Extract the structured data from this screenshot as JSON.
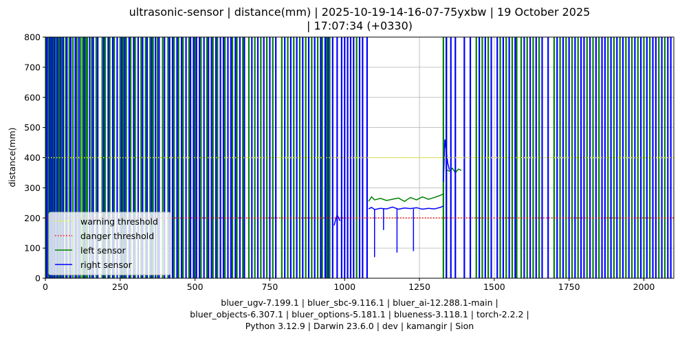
{
  "chart_data": {
    "type": "line",
    "title_lines": [
      "ultrasonic-sensor | distance(mm) | 2025-10-19-14-16-07-75yxbw | 19 October 2025",
      "| 17:07:34 (+0330)"
    ],
    "xlabel_lines": [
      "bluer_ugv-7.199.1 | bluer_sbc-9.116.1 | bluer_ai-12.288.1-main |",
      "bluer_objects-6.307.1 | bluer_options-5.181.1 | blueness-3.118.1 | torch-2.2.2 |",
      "Python 3.12.9 | Darwin 23.6.0 | dev | kamangir | Sion"
    ],
    "ylabel": "distance(mm)",
    "xlim": [
      0,
      2100
    ],
    "ylim": [
      0,
      800
    ],
    "x_ticks": [
      0,
      250,
      500,
      750,
      1000,
      1250,
      1500,
      1750,
      2000
    ],
    "y_ticks": [
      0,
      100,
      200,
      300,
      400,
      500,
      600,
      700,
      800
    ],
    "grid": true,
    "legend_position": "lower-left",
    "series": [
      {
        "name": "warning threshold",
        "color": "#ffff00",
        "style": "dotted",
        "x": [
          0,
          2100
        ],
        "y": [
          400,
          400
        ]
      },
      {
        "name": "danger threshold",
        "color": "#ff0000",
        "style": "dotted",
        "x": [
          0,
          2100
        ],
        "y": [
          200,
          200
        ]
      },
      {
        "name": "left sensor",
        "color": "#008000",
        "style": "solid",
        "spike_x": [
          3,
          10,
          18,
          25,
          35,
          45,
          55,
          68,
          80,
          92,
          105,
          118,
          125,
          135,
          140,
          155,
          170,
          190,
          200,
          215,
          230,
          250,
          260,
          270,
          285,
          300,
          320,
          335,
          350,
          360,
          375,
          392,
          410,
          430,
          445,
          460,
          480,
          500,
          520,
          540,
          560,
          575,
          600,
          625,
          640,
          660,
          680,
          700,
          720,
          740,
          760,
          790,
          810,
          830,
          850,
          870,
          890,
          910,
          925,
          940,
          950,
          1040,
          1330,
          1340,
          1440,
          1460,
          1480,
          1520,
          1540,
          1560,
          1575,
          1590,
          1610,
          1630,
          1650,
          1700,
          1720,
          1740,
          1760,
          1780,
          1810,
          1830,
          1850,
          1880,
          1900,
          1920,
          1940,
          1960,
          1980,
          2000,
          2020,
          2050,
          2070
        ],
        "plateau_x": [
          1080,
          1090,
          1100,
          1120,
          1140,
          1160,
          1180,
          1200,
          1220,
          1240,
          1260,
          1280,
          1300,
          1320,
          1330
        ],
        "plateau_y": [
          255,
          270,
          260,
          265,
          258,
          262,
          266,
          255,
          268,
          260,
          270,
          262,
          268,
          275,
          280
        ],
        "tail_x": [
          1340,
          1350,
          1360,
          1370,
          1380,
          1390
        ],
        "tail_y": [
          360,
          355,
          365,
          350,
          362,
          358
        ]
      },
      {
        "name": "right sensor",
        "color": "#0000ff",
        "style": "solid",
        "spike_x": [
          5,
          15,
          22,
          30,
          40,
          50,
          60,
          72,
          85,
          100,
          112,
          130,
          148,
          160,
          175,
          195,
          210,
          225,
          240,
          255,
          265,
          280,
          295,
          310,
          325,
          340,
          355,
          368,
          380,
          398,
          415,
          425,
          440,
          455,
          470,
          485,
          495,
          505,
          515,
          530,
          545,
          555,
          570,
          585,
          595,
          610,
          620,
          635,
          650,
          665,
          690,
          710,
          730,
          750,
          770,
          800,
          820,
          840,
          860,
          880,
          900,
          920,
          935,
          945,
          960,
          975,
          990,
          1000,
          1010,
          1020,
          1030,
          1050,
          1060,
          1075,
          1340,
          1355,
          1370,
          1400,
          1420,
          1450,
          1470,
          1490,
          1510,
          1530,
          1550,
          1570,
          1600,
          1620,
          1640,
          1660,
          1680,
          1710,
          1730,
          1750,
          1770,
          1790,
          1800,
          1820,
          1840,
          1860,
          1870,
          1890,
          1910,
          1930,
          1950,
          1970,
          1990,
          2010,
          2030,
          2040,
          2060,
          2080,
          2090
        ],
        "plateau_x": [
          1080,
          1090,
          1100,
          1120,
          1140,
          1160,
          1180,
          1200,
          1220,
          1240,
          1260,
          1280,
          1300,
          1320,
          1330
        ],
        "plateau_y": [
          230,
          235,
          228,
          232,
          230,
          236,
          229,
          233,
          231,
          234,
          229,
          232,
          230,
          235,
          240
        ],
        "dips_x": [
          1100,
          1130,
          1175,
          1230
        ],
        "dips_y": [
          70,
          160,
          85,
          90
        ],
        "near_cluster_x": [
          965,
          970,
          975,
          980,
          985
        ],
        "near_cluster_y": [
          175,
          195,
          210,
          200,
          190
        ],
        "tail_x": [
          1330,
          1335,
          1340,
          1345,
          1350
        ],
        "tail_y": [
          320,
          460,
          420,
          380,
          360
        ]
      }
    ]
  }
}
